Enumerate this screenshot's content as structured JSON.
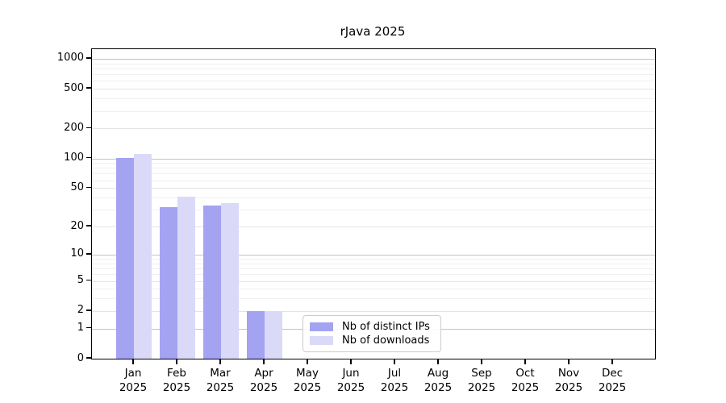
{
  "chart_data": {
    "type": "bar",
    "title": "rJava 2025",
    "year_label": "2025",
    "categories": [
      "Jan",
      "Feb",
      "Mar",
      "Apr",
      "May",
      "Jun",
      "Jul",
      "Aug",
      "Sep",
      "Oct",
      "Nov",
      "Dec"
    ],
    "series": [
      {
        "name": "Nb of distinct IPs",
        "color": "#a3a3f2",
        "values": [
          101,
          32,
          33,
          2,
          0,
          0,
          0,
          0,
          0,
          0,
          0,
          0
        ]
      },
      {
        "name": "Nb of downloads",
        "color": "#dadaf8",
        "values": [
          110,
          41,
          35,
          2,
          0,
          0,
          0,
          0,
          0,
          0,
          0,
          0
        ]
      }
    ],
    "y_axis": {
      "scale": "log10(1+x)",
      "ticks": [
        0,
        1,
        2,
        5,
        10,
        20,
        50,
        100,
        200,
        500,
        1000
      ],
      "minor_ticks": [
        3,
        4,
        6,
        7,
        8,
        9,
        30,
        40,
        60,
        70,
        80,
        90,
        300,
        400,
        600,
        700,
        800,
        900
      ],
      "decade_ticks": [
        1,
        10,
        100,
        1000
      ],
      "min": 0,
      "max": 1000
    },
    "x_axis": {
      "label_line2": "2025"
    },
    "grid": true,
    "legend_position": "inside-bottom-center",
    "colors": {
      "axis": "#000000",
      "grid_major": "#e4e4e4",
      "grid_minor": "#f0f0f0",
      "grid_decade": "#c3c3c3"
    }
  }
}
